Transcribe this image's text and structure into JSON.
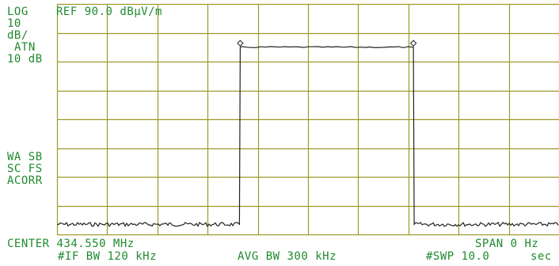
{
  "header": {
    "log": "LOG",
    "ref": "REF 90.0 dBµV/m"
  },
  "left_panel": {
    "scale_value": "10",
    "scale_unit": "dB/",
    "atn_label": "ATN",
    "atn_value": "10 dB",
    "wa_sb": "WA SB",
    "sc_fs": "SC FS",
    "acorr": "ACORR"
  },
  "footer": {
    "center": "CENTER 434.550 MHz",
    "span": "SPAN 0 Hz",
    "if_bw": "#IF BW 120 kHz",
    "avg_bw": "AVG BW 300 kHz",
    "swp_label": "#SWP 10.0",
    "swp_unit": "sec"
  },
  "colors": {
    "text": "#1f8a2e",
    "grid": "#9c9a2a",
    "trace": "#222222"
  },
  "trace": {
    "reference_level_dbuv_m": 90.0,
    "scale_db_per_div": 10,
    "divisions_x": 10,
    "divisions_y": 8,
    "noise_floor_dbuv_m": 13.5,
    "signal_level_dbuv_m": 75.0,
    "signal_on_div": 3.65,
    "signal_off_div": 7.1,
    "marker_icons": [
      "diamond-marker-icon",
      "diamond-marker-icon"
    ]
  }
}
